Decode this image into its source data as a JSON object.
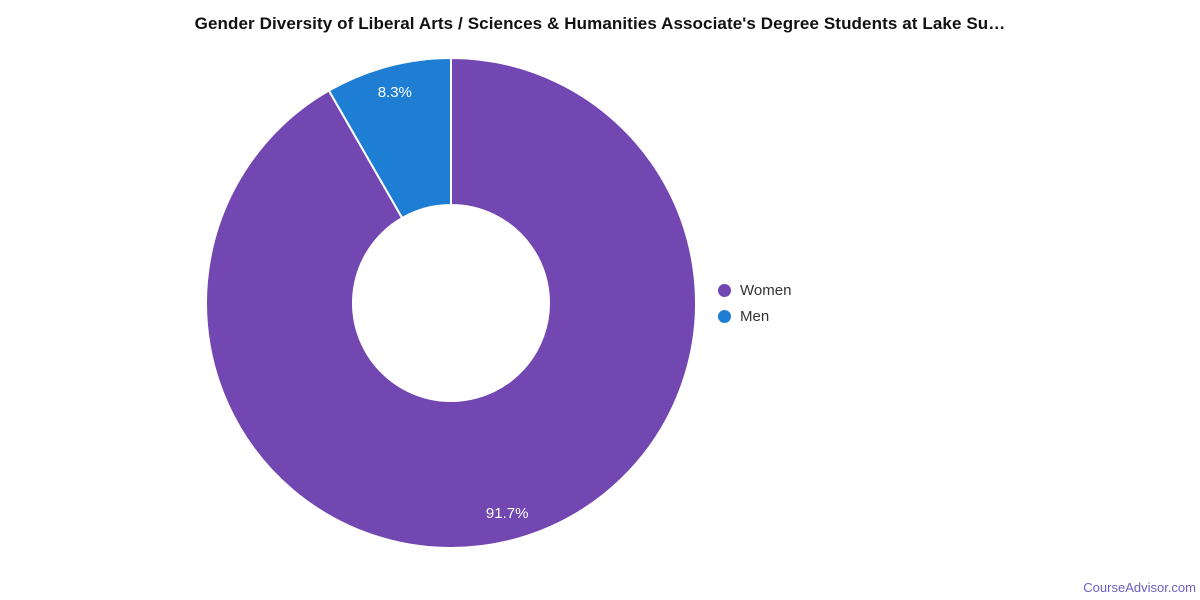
{
  "header": {
    "title": "Gender Diversity of Liberal Arts / Sciences & Humanities Associate's Degree Students at Lake Su…"
  },
  "footer": {
    "watermark": "CourseAdvisor.com"
  },
  "styles": {
    "title_color": "#111111",
    "legend_text_color": "#333333",
    "watermark_color": "#6e5ec4",
    "background": "#ffffff"
  },
  "chart_data": {
    "type": "pie",
    "subtype": "donut",
    "title": "Gender Diversity of Liberal Arts / Sciences & Humanities Associate's Degree Students at Lake Su…",
    "categories": [
      "Women",
      "Men"
    ],
    "values": [
      91.7,
      8.3
    ],
    "slice_labels": [
      "91.7%",
      "8.3%"
    ],
    "colors": [
      "#7347b2",
      "#1e7ed3"
    ],
    "slice_label_color": "#ffffff",
    "divider_color": "#ffffff",
    "start_angle_deg": 0,
    "direction": "clockwise",
    "inner_radius_ratio": 0.4,
    "grid": false,
    "legend_position": "right"
  }
}
